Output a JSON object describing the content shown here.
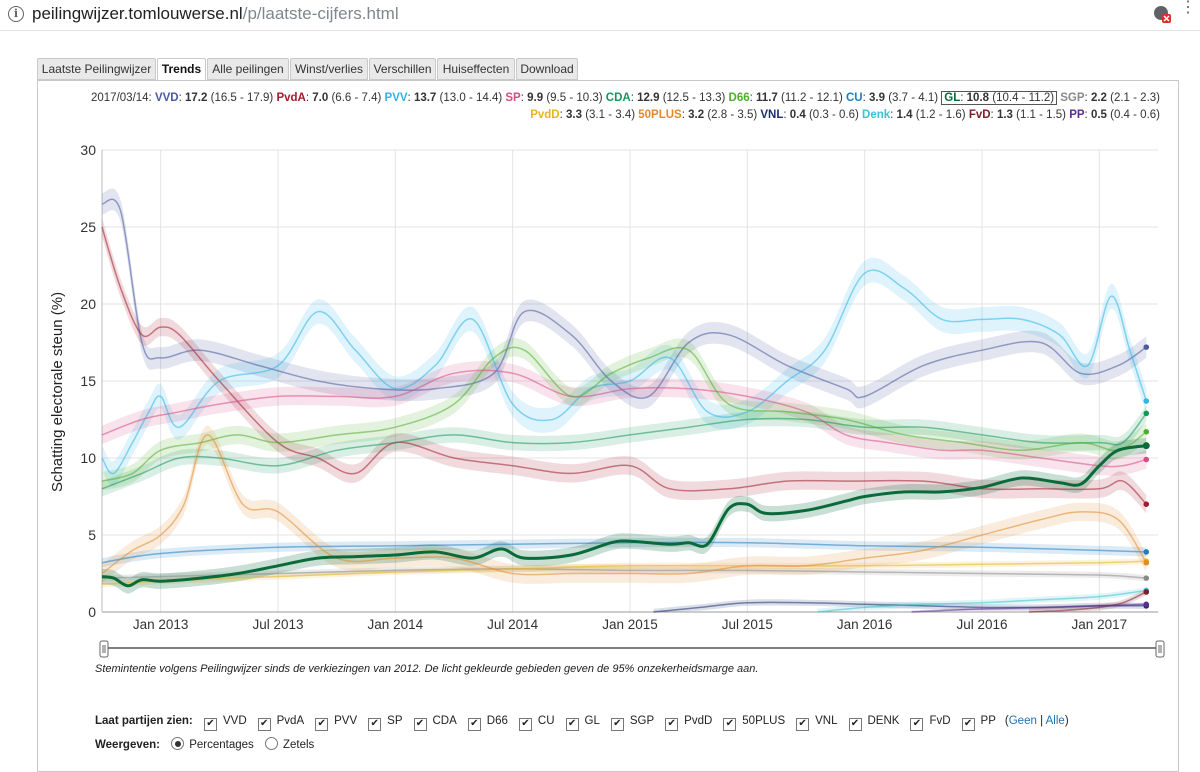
{
  "browser": {
    "url_host": "peilingwijzer.tomlouwerse.nl",
    "url_path": "/p/laatste-cijfers.html"
  },
  "tabs": [
    {
      "label": "Laatste Peilingwijzer",
      "active": false
    },
    {
      "label": "Trends",
      "active": true
    },
    {
      "label": "Alle peilingen",
      "active": false
    },
    {
      "label": "Winst/verlies",
      "active": false
    },
    {
      "label": "Verschillen",
      "active": false
    },
    {
      "label": "Huiseffecten",
      "active": false
    },
    {
      "label": "Download",
      "active": false
    }
  ],
  "summary": {
    "date": "2017/03/14:",
    "line1": [
      {
        "party": "VVD",
        "value": "17.2",
        "range": "(16.5 - 17.9)",
        "color": "#4a5a9e"
      },
      {
        "party": "PvdA",
        "value": "7.0",
        "range": "(6.6 - 7.4)",
        "color": "#a21b2e"
      },
      {
        "party": "PVV",
        "value": "13.7",
        "range": "(13.0 - 14.4)",
        "color": "#2fb5e6"
      },
      {
        "party": "SP",
        "value": "9.9",
        "range": "(9.5 - 10.3)",
        "color": "#d64c84"
      },
      {
        "party": "CDA",
        "value": "12.9",
        "range": "(12.5 - 13.3)",
        "color": "#14975a"
      },
      {
        "party": "D66",
        "value": "11.7",
        "range": "(11.2 - 12.1)",
        "color": "#4fae2e"
      },
      {
        "party": "CU",
        "value": "3.9",
        "range": "(3.7 - 4.1)",
        "color": "#1e7dc0"
      },
      {
        "party": "GL",
        "value": "10.8",
        "range": "(10.4 - 11.2)",
        "color": "#0a6a3a"
      },
      {
        "party": "SGP",
        "value": "2.2",
        "range": "(2.1 - 2.3)",
        "color": "#8a8a8a"
      }
    ],
    "line2": [
      {
        "party": "PvdD",
        "value": "3.3",
        "range": "(3.1 - 3.4)",
        "color": "#e5b521"
      },
      {
        "party": "50PLUS",
        "value": "3.2",
        "range": "(2.8 - 3.5)",
        "color": "#e08a2a"
      },
      {
        "party": "VNL",
        "value": "0.4",
        "range": "(0.3 - 0.6)",
        "color": "#1a2f6d"
      },
      {
        "party": "Denk",
        "value": "1.4",
        "range": "(1.2 - 1.6)",
        "color": "#3fc0d0"
      },
      {
        "party": "FvD",
        "value": "1.3",
        "range": "(1.1 - 1.5)",
        "color": "#7a1f2a"
      },
      {
        "party": "PP",
        "value": "0.5",
        "range": "(0.4 - 0.6)",
        "color": "#5b2d8e"
      }
    ]
  },
  "chart_data": {
    "type": "line",
    "title": "",
    "ylabel": "Schatting electorale steun (%)",
    "xlabel": "",
    "ylim": [
      0,
      30
    ],
    "yticks": [
      0,
      5,
      10,
      15,
      20,
      25,
      30
    ],
    "xlim": [
      2012.75,
      2017.25
    ],
    "xticks": [
      {
        "label": "Jan 2013",
        "x": 2013.0
      },
      {
        "label": "Jul 2013",
        "x": 2013.5
      },
      {
        "label": "Jan 2014",
        "x": 2014.0
      },
      {
        "label": "Jul 2014",
        "x": 2014.5
      },
      {
        "label": "Jan 2015",
        "x": 2015.0
      },
      {
        "label": "Jul 2015",
        "x": 2015.5
      },
      {
        "label": "Jan 2016",
        "x": 2016.0
      },
      {
        "label": "Jul 2016",
        "x": 2016.5
      },
      {
        "label": "Jan 2017",
        "x": 2017.0
      }
    ],
    "grid": true,
    "highlight": "GL",
    "series": [
      {
        "name": "VVD",
        "color": "#4a5a9e",
        "band": 0.7,
        "x": [
          2012.75,
          2012.83,
          2012.92,
          2013.0,
          2013.17,
          2013.42,
          2013.67,
          2013.92,
          2014.17,
          2014.42,
          2014.55,
          2014.75,
          2014.92,
          2015.08,
          2015.25,
          2015.42,
          2015.67,
          2015.92,
          2016.0,
          2016.25,
          2016.5,
          2016.75,
          2016.92,
          2017.08,
          2017.2
        ],
        "y": [
          26.5,
          26,
          17.5,
          16.5,
          17,
          16,
          15,
          14.5,
          14.5,
          15.5,
          19.5,
          18,
          15,
          14,
          17.5,
          18,
          16,
          14.5,
          14,
          16,
          17,
          17.5,
          15.5,
          16,
          17.2
        ]
      },
      {
        "name": "PvdA",
        "color": "#a21b2e",
        "band": 0.6,
        "x": [
          2012.75,
          2012.83,
          2012.92,
          2013.0,
          2013.08,
          2013.25,
          2013.5,
          2013.67,
          2013.83,
          2014.0,
          2014.25,
          2014.5,
          2014.75,
          2015.0,
          2015.17,
          2015.42,
          2015.67,
          2015.92,
          2016.25,
          2016.5,
          2016.75,
          2017.0,
          2017.1,
          2017.2
        ],
        "y": [
          25,
          21,
          18,
          18.5,
          18,
          15,
          11,
          10,
          9,
          11,
          10,
          9.5,
          9,
          9.5,
          8,
          8,
          8.5,
          8.5,
          8.5,
          8,
          8,
          8,
          8.5,
          7
        ]
      },
      {
        "name": "PVV",
        "color": "#2fb5e6",
        "band": 0.8,
        "x": [
          2012.75,
          2012.8,
          2012.88,
          2012.95,
          2013.0,
          2013.08,
          2013.25,
          2013.5,
          2013.67,
          2013.83,
          2014.0,
          2014.17,
          2014.33,
          2014.5,
          2014.67,
          2014.83,
          2015.0,
          2015.17,
          2015.33,
          2015.5,
          2015.67,
          2015.83,
          2016.0,
          2016.17,
          2016.33,
          2016.5,
          2016.67,
          2016.83,
          2016.95,
          2017.05,
          2017.13,
          2017.2
        ],
        "y": [
          10,
          9,
          11,
          13,
          14,
          12,
          15,
          16,
          19.5,
          17,
          14.5,
          16,
          19,
          13.5,
          12.5,
          14.5,
          15,
          16.5,
          13,
          13,
          15,
          17,
          22,
          21,
          19,
          19,
          19,
          18,
          16,
          20.5,
          17,
          13.7
        ]
      },
      {
        "name": "SP",
        "color": "#d64c84",
        "band": 0.6,
        "x": [
          2012.75,
          2012.92,
          2013.08,
          2013.25,
          2013.5,
          2013.75,
          2014.0,
          2014.25,
          2014.5,
          2014.75,
          2015.0,
          2015.25,
          2015.5,
          2015.75,
          2015.92,
          2016.1,
          2016.33,
          2016.5,
          2016.75,
          2017.0,
          2017.1,
          2017.2
        ],
        "y": [
          11.5,
          12.5,
          13,
          13.5,
          14,
          14,
          14,
          15.5,
          15.5,
          14,
          14.5,
          14.5,
          14,
          13,
          11.5,
          11,
          10.5,
          10.5,
          10,
          9.5,
          9.5,
          9.9
        ]
      },
      {
        "name": "CDA",
        "color": "#14975a",
        "band": 0.5,
        "x": [
          2012.75,
          2012.92,
          2013.08,
          2013.25,
          2013.5,
          2013.75,
          2014.0,
          2014.25,
          2014.5,
          2014.75,
          2015.0,
          2015.25,
          2015.5,
          2015.75,
          2016.0,
          2016.25,
          2016.5,
          2016.75,
          2017.0,
          2017.1,
          2017.2
        ],
        "y": [
          8,
          9,
          10,
          10,
          9.5,
          10.5,
          11,
          11.5,
          11,
          11,
          11.5,
          12,
          12.5,
          12.5,
          12,
          12,
          11.5,
          11,
          11,
          11,
          12.9
        ]
      },
      {
        "name": "D66",
        "color": "#4fae2e",
        "band": 0.6,
        "x": [
          2012.75,
          2012.88,
          2013.0,
          2013.17,
          2013.33,
          2013.5,
          2013.75,
          2014.0,
          2014.25,
          2014.42,
          2014.55,
          2014.75,
          2014.92,
          2015.08,
          2015.25,
          2015.42,
          2015.67,
          2015.92,
          2016.17,
          2016.42,
          2016.67,
          2016.92,
          2017.08,
          2017.2
        ],
        "y": [
          8.5,
          9,
          10.5,
          11,
          11.5,
          11,
          11.5,
          12,
          13.5,
          16.5,
          17,
          14,
          15.5,
          16.5,
          17,
          13.5,
          13,
          12.5,
          11.5,
          11,
          10.5,
          11,
          10.5,
          11.7
        ]
      },
      {
        "name": "CU",
        "color": "#1e7dc0",
        "band": 0.3,
        "x": [
          2012.75,
          2013.0,
          2013.5,
          2014.0,
          2014.5,
          2015.0,
          2015.5,
          2016.0,
          2016.5,
          2017.0,
          2017.2
        ],
        "y": [
          3.2,
          3.8,
          4.2,
          4.3,
          4.4,
          4.5,
          4.5,
          4.3,
          4.2,
          4.0,
          3.9
        ]
      },
      {
        "name": "SGP",
        "color": "#8a8a8a",
        "band": 0.2,
        "x": [
          2012.75,
          2013.0,
          2013.5,
          2014.0,
          2014.5,
          2015.0,
          2015.5,
          2016.0,
          2016.5,
          2017.0,
          2017.2
        ],
        "y": [
          2.2,
          2.3,
          2.5,
          2.7,
          2.8,
          2.7,
          2.7,
          2.6,
          2.5,
          2.4,
          2.2
        ]
      },
      {
        "name": "PvdD",
        "color": "#e5b521",
        "band": 0.2,
        "x": [
          2012.75,
          2013.0,
          2013.5,
          2014.0,
          2014.5,
          2015.0,
          2015.5,
          2016.0,
          2016.5,
          2017.0,
          2017.2
        ],
        "y": [
          1.8,
          2.0,
          2.3,
          2.6,
          2.8,
          3.0,
          3.0,
          3.0,
          3.1,
          3.2,
          3.3
        ]
      },
      {
        "name": "50PLUS",
        "color": "#e08a2a",
        "band": 0.6,
        "x": [
          2012.75,
          2012.88,
          2013.0,
          2013.1,
          2013.2,
          2013.35,
          2013.5,
          2013.75,
          2014.0,
          2014.25,
          2014.5,
          2014.75,
          2015.0,
          2015.25,
          2015.5,
          2015.75,
          2016.0,
          2016.25,
          2016.5,
          2016.75,
          2016.92,
          2017.08,
          2017.2
        ],
        "y": [
          2.5,
          4,
          5,
          7,
          11.5,
          7,
          6.5,
          3.5,
          3.5,
          3.5,
          2.5,
          2.5,
          2.5,
          2.5,
          3,
          3,
          3.5,
          4,
          5,
          6,
          6.5,
          6,
          3.2
        ]
      },
      {
        "name": "VNL",
        "color": "#1a2f6d",
        "band": 0.2,
        "x": [
          2015.1,
          2015.3,
          2015.5,
          2015.75,
          2016.0,
          2016.25,
          2016.5,
          2016.75,
          2017.0,
          2017.2
        ],
        "y": [
          0,
          0.3,
          0.6,
          0.6,
          0.5,
          0.4,
          0.3,
          0.3,
          0.4,
          0.4
        ]
      },
      {
        "name": "Denk",
        "color": "#3fc0d0",
        "band": 0.2,
        "x": [
          2015.8,
          2016.0,
          2016.25,
          2016.5,
          2016.75,
          2017.0,
          2017.2
        ],
        "y": [
          0,
          0.3,
          0.5,
          0.6,
          0.8,
          1.0,
          1.4
        ]
      },
      {
        "name": "FvD",
        "color": "#7a1f2a",
        "band": 0.2,
        "x": [
          2016.7,
          2016.85,
          2017.0,
          2017.1,
          2017.2
        ],
        "y": [
          0,
          0.1,
          0.3,
          0.6,
          1.3
        ]
      },
      {
        "name": "PP",
        "color": "#5b2d8e",
        "band": 0.1,
        "x": [
          2016.2,
          2016.5,
          2016.8,
          2017.0,
          2017.2
        ],
        "y": [
          0,
          0.2,
          0.3,
          0.4,
          0.5
        ]
      },
      {
        "name": "GL",
        "color": "#0a6a3a",
        "band": 0.5,
        "x": [
          2012.75,
          2012.8,
          2012.86,
          2012.92,
          2013.0,
          2013.17,
          2013.33,
          2013.5,
          2013.67,
          2013.83,
          2014.0,
          2014.17,
          2014.33,
          2014.45,
          2014.55,
          2014.75,
          2014.92,
          2015.0,
          2015.17,
          2015.25,
          2015.33,
          2015.42,
          2015.5,
          2015.58,
          2015.75,
          2015.92,
          2016.0,
          2016.17,
          2016.33,
          2016.5,
          2016.67,
          2016.83,
          2016.92,
          2017.0,
          2017.08,
          2017.2
        ],
        "y": [
          2.3,
          2.2,
          1.7,
          2.1,
          2.0,
          2.2,
          2.5,
          3.0,
          3.5,
          3.6,
          3.7,
          3.9,
          3.5,
          4.1,
          3.5,
          3.7,
          4.5,
          4.6,
          4.4,
          4.5,
          4.4,
          6.7,
          7.0,
          6.4,
          6.6,
          7.2,
          7.5,
          7.8,
          7.8,
          8.1,
          8.7,
          8.4,
          8.3,
          9.5,
          10.5,
          10.8
        ]
      }
    ]
  },
  "range_slider": {
    "left_label": "",
    "right_label": ""
  },
  "caption": "Stemintentie volgens Peilingwijzer sinds de verkiezingen van 2012. De licht gekleurde gebieden geven de 95% onzekerheidsmarge aan.",
  "filters": {
    "label": "Laat partijen zien:",
    "parties": [
      "VVD",
      "PvdA",
      "PVV",
      "SP",
      "CDA",
      "D66",
      "CU",
      "GL",
      "SGP",
      "PvdD",
      "50PLUS",
      "VNL",
      "DENK",
      "FvD",
      "PP"
    ],
    "none_label": "Geen",
    "sep": "|",
    "all_label": "Alle",
    "open_paren": "(",
    "close_paren": ")"
  },
  "display": {
    "label": "Weergeven:",
    "options": [
      {
        "label": "Percentages",
        "selected": true
      },
      {
        "label": "Zetels",
        "selected": false
      }
    ]
  }
}
